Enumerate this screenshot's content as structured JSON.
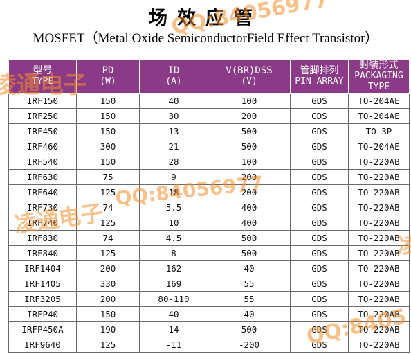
{
  "title_cn": "场效应管",
  "title_en": "MOSFET（Metal Oxide SemiconductorField Effect Transistor）",
  "columns": [
    {
      "line1": "型号",
      "line2": "TYPE"
    },
    {
      "line1": "PD",
      "line2": "(W)"
    },
    {
      "line1": "ID",
      "line2": "(A)"
    },
    {
      "line1": "V(BR)DSS",
      "line2": "(V)"
    },
    {
      "line1": "管脚排列",
      "line2": "PIN ARRAY"
    },
    {
      "line1": "封装形式",
      "line2": "PACKAGING TYPE"
    }
  ],
  "rows": [
    [
      "IRF150",
      "150",
      "40",
      "100",
      "GDS",
      "TO-204AE"
    ],
    [
      "IRF250",
      "150",
      "30",
      "200",
      "GDS",
      "TO-204AE"
    ],
    [
      "IRF450",
      "150",
      "13",
      "500",
      "GDS",
      "TO-3P"
    ],
    [
      "IRF460",
      "300",
      "21",
      "500",
      "GDS",
      "TO-204AE"
    ],
    [
      "IRF540",
      "150",
      "28",
      "100",
      "GDS",
      "TO-220AB"
    ],
    [
      "IRF630",
      "75",
      "9",
      "200",
      "GDS",
      "TO-220AB"
    ],
    [
      "IRF640",
      "125",
      "18",
      "200",
      "GDS",
      "TO-220AB"
    ],
    [
      "IRF730",
      "74",
      "5.5",
      "400",
      "GDS",
      "TO-220AB"
    ],
    [
      "IRF740",
      "125",
      "10",
      "400",
      "GDS",
      "TO-220AB"
    ],
    [
      "IRF830",
      "74",
      "4.5",
      "500",
      "GDS",
      "TO-220AB"
    ],
    [
      "IRF840",
      "125",
      "8",
      "500",
      "GDS",
      "TO-220AB"
    ],
    [
      "IRF1404",
      "200",
      "162",
      "40",
      "GDS",
      "TO-220AB"
    ],
    [
      "IRF1405",
      "330",
      "169",
      "55",
      "GDS",
      "TO-220AB"
    ],
    [
      "IRF3205",
      "200",
      "80-110",
      "55",
      "GDS",
      "TO-220AB"
    ],
    [
      "IRFP40",
      "150",
      "40",
      "40",
      "GDS",
      "TO-220AB"
    ],
    [
      "IRFP450A",
      "190",
      "14",
      "500",
      "GDS",
      "TO-220AB"
    ],
    [
      "IRF9640",
      "125",
      "-11",
      "-200",
      "GDS",
      "TO-220AB"
    ]
  ],
  "watermarks": {
    "company": "凌通电子",
    "qq_full": "QQ:84056977",
    "qq_a": "QQ:84056977",
    "qq_b": "QQ:8405",
    "fragment_a": "6977",
    "fragment_b": "凌"
  }
}
